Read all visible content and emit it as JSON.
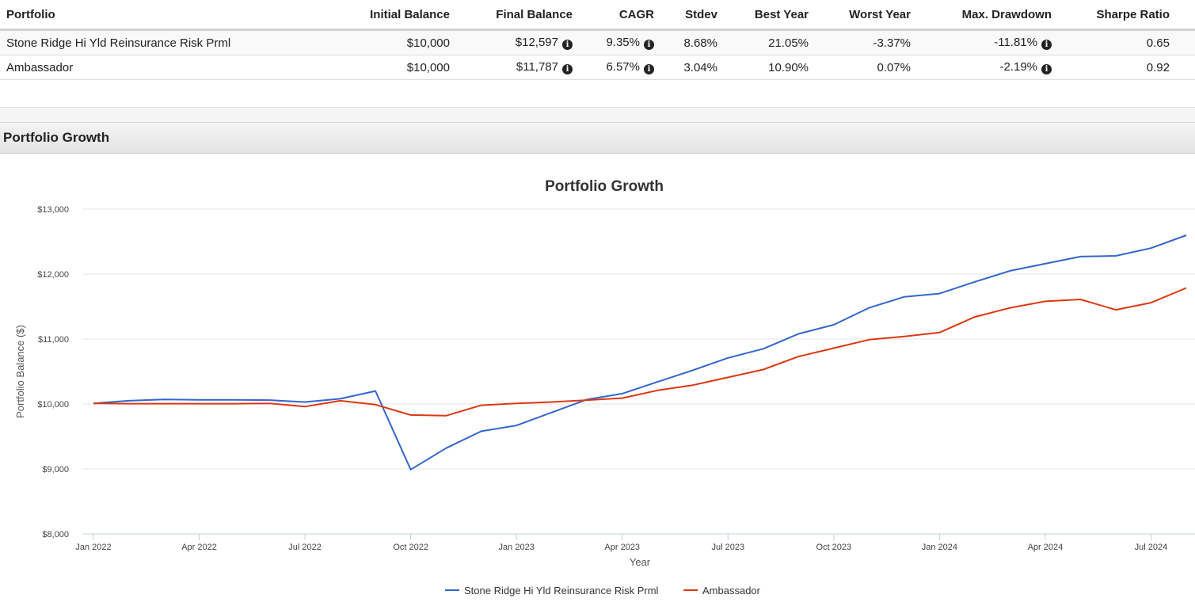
{
  "table": {
    "headers": [
      "Portfolio",
      "Initial Balance",
      "Final Balance",
      "CAGR",
      "Stdev",
      "Best Year",
      "Worst Year",
      "Max. Drawdown",
      "Sharpe Ratio"
    ],
    "rows": [
      {
        "portfolio": "Stone Ridge Hi Yld Reinsurance Risk Prml",
        "initial": "$10,000",
        "final": "$12,597",
        "cagr": "9.35%",
        "stdev": "8.68%",
        "best": "21.05%",
        "worst": "-3.37%",
        "drawdown": "-11.81%",
        "sharpe": "0.65"
      },
      {
        "portfolio": "Ambassador",
        "initial": "$10,000",
        "final": "$11,787",
        "cagr": "6.57%",
        "stdev": "3.04%",
        "best": "10.90%",
        "worst": "0.07%",
        "drawdown": "-2.19%",
        "sharpe": "0.92"
      }
    ],
    "info_icon": "info-circle-icon"
  },
  "section": {
    "title": "Portfolio Growth"
  },
  "chart_data": {
    "type": "line",
    "title": "Portfolio Growth",
    "xlabel": "Year",
    "ylabel": "Portfolio Balance ($)",
    "ylim": [
      8000,
      13000
    ],
    "yticks": [
      8000,
      9000,
      10000,
      11000,
      12000,
      13000
    ],
    "ytick_labels": [
      "$8,000",
      "$9,000",
      "$10,000",
      "$11,000",
      "$12,000",
      "$13,000"
    ],
    "xtick_labels": [
      "Jan 2022",
      "Apr 2022",
      "Jul 2022",
      "Oct 2022",
      "Jan 2023",
      "Apr 2023",
      "Jul 2023",
      "Oct 2023",
      "Jan 2024",
      "Apr 2024",
      "Jul 2024"
    ],
    "x": [
      "Jan 2022",
      "Feb 2022",
      "Mar 2022",
      "Apr 2022",
      "May 2022",
      "Jun 2022",
      "Jul 2022",
      "Aug 2022",
      "Sep 2022",
      "Oct 2022",
      "Nov 2022",
      "Dec 2022",
      "Jan 2023",
      "Feb 2023",
      "Mar 2023",
      "Apr 2023",
      "May 2023",
      "Jun 2023",
      "Jul 2023",
      "Aug 2023",
      "Sep 2023",
      "Oct 2023",
      "Nov 2023",
      "Dec 2023",
      "Jan 2024",
      "Feb 2024",
      "Mar 2024",
      "Apr 2024",
      "May 2024",
      "Jun 2024",
      "Jul 2024",
      "Aug 2024"
    ],
    "series": [
      {
        "name": "Stone Ridge Hi Yld Reinsurance Risk Prml",
        "color": "#3366cc",
        "values": [
          10010,
          10050,
          10070,
          10065,
          10065,
          10060,
          10030,
          10080,
          10200,
          8990,
          9320,
          9580,
          9670,
          9870,
          10070,
          10160,
          10340,
          10520,
          10710,
          10850,
          11080,
          11220,
          11480,
          11650,
          11700,
          11880,
          12050,
          12160,
          12270,
          12280,
          12400,
          12597
        ]
      },
      {
        "name": "Ambassador",
        "color": "#dc3912",
        "values": [
          10010,
          10005,
          10005,
          10005,
          10005,
          10010,
          9960,
          10050,
          9990,
          9830,
          9820,
          9980,
          10010,
          10030,
          10060,
          10090,
          10210,
          10290,
          10410,
          10530,
          10730,
          10860,
          10990,
          11040,
          11100,
          11340,
          11480,
          11580,
          11610,
          11450,
          11560,
          11787
        ]
      }
    ],
    "legend": "bottom-center",
    "grid": true
  }
}
